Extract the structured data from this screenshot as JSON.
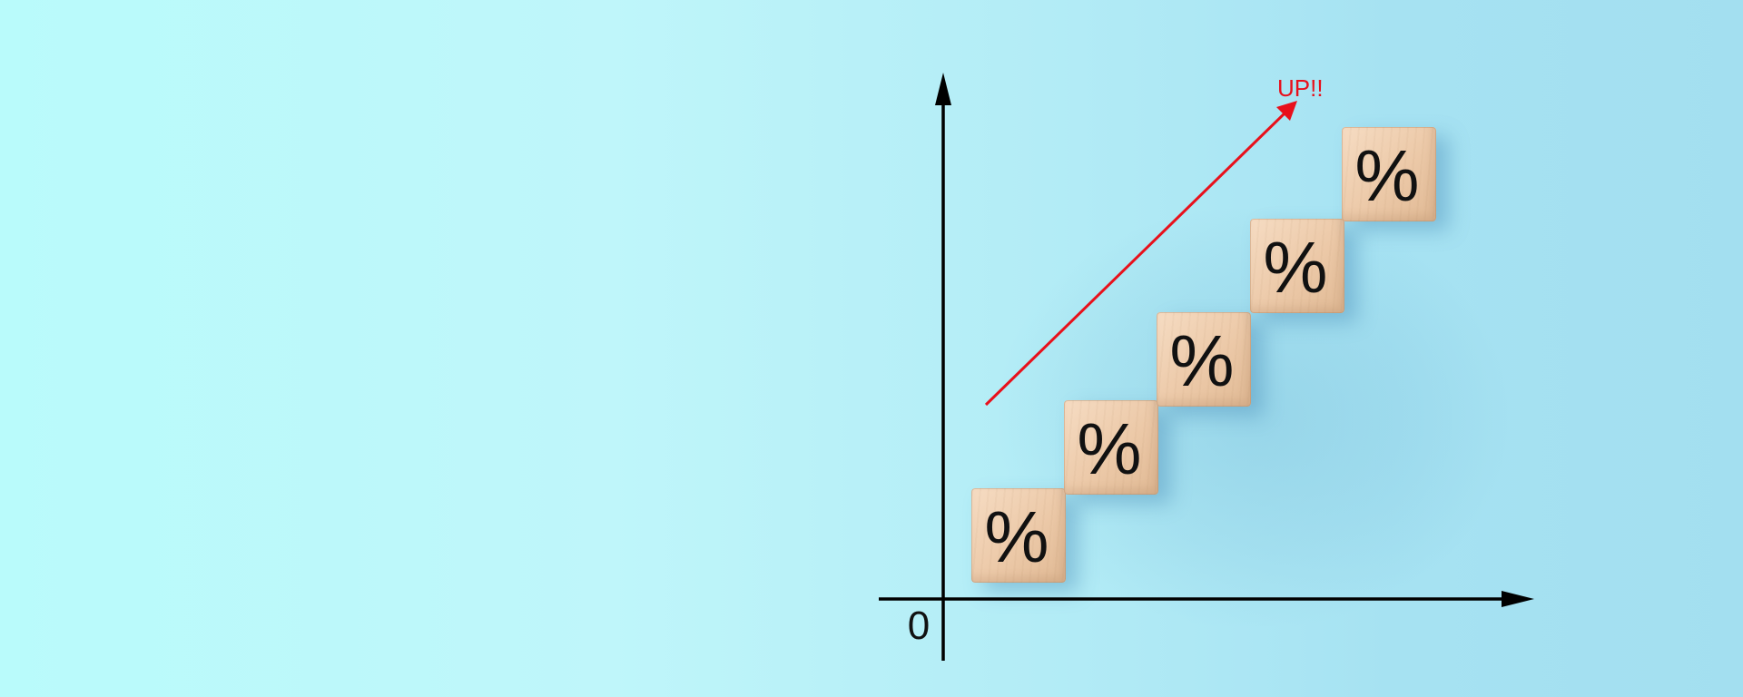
{
  "scene": {
    "background_color": "#bdf7fa",
    "block_color": "#efd0b2",
    "axis_color": "#000000",
    "accent_color": "#e8101b",
    "axis_origin_label": "0",
    "trend_label": "UP!!",
    "block_symbol": "%",
    "block_count": 5
  }
}
